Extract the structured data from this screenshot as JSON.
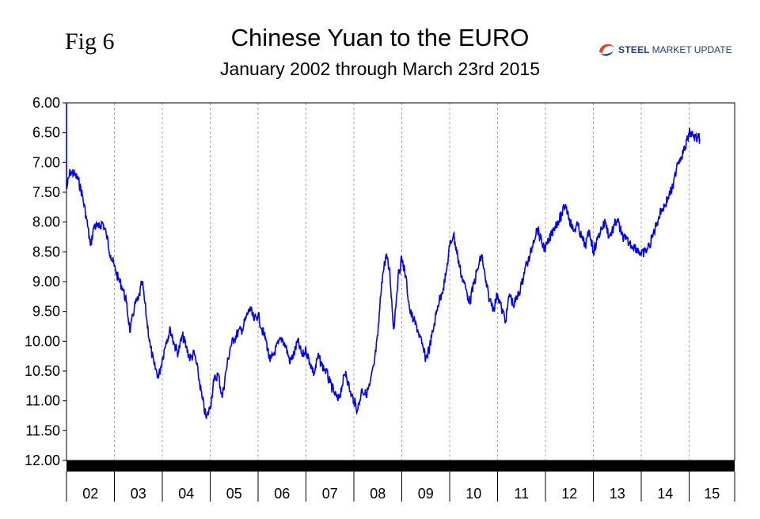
{
  "header": {
    "fig_label": "Fig 6",
    "title": "Chinese Yuan to the EURO",
    "subtitle": "January 2002 through March 23rd 2015",
    "brand_word1": "STEEL",
    "brand_word2": "MARKET UPDATE"
  },
  "colors": {
    "line": "#0000ff",
    "grid": "#a6a6a6",
    "axis": "#000000",
    "bottom_band": "#000000",
    "brand_blue": "#1f3e7a",
    "brand_swirl": "#e2452b"
  },
  "chart_data": {
    "type": "line",
    "title": "Chinese Yuan to the EURO",
    "subtitle": "January 2002 through March 23rd 2015",
    "xlabel": "",
    "ylabel": "",
    "y_inverted": true,
    "ylim": [
      6.0,
      12.0
    ],
    "xlim": [
      2002.0,
      2015.95
    ],
    "yticks": [
      "6.00",
      "6.50",
      "7.00",
      "7.50",
      "8.00",
      "8.50",
      "9.00",
      "9.50",
      "10.00",
      "10.50",
      "11.00",
      "11.50",
      "12.00"
    ],
    "xticks": [
      "02",
      "03",
      "04",
      "05",
      "06",
      "07",
      "08",
      "09",
      "10",
      "11",
      "12",
      "13",
      "14",
      "15"
    ],
    "grid_x": true,
    "grid_y": false,
    "legend": "none",
    "series": [
      {
        "x": [
          2002.0,
          2002.08,
          2002.17,
          2002.25,
          2002.33,
          2002.42,
          2002.5,
          2002.58,
          2002.67,
          2002.75,
          2002.83,
          2002.92,
          2003.0,
          2003.08,
          2003.17,
          2003.25,
          2003.33,
          2003.42,
          2003.5,
          2003.58,
          2003.67,
          2003.75,
          2003.83,
          2003.92,
          2004.0,
          2004.08,
          2004.17,
          2004.25,
          2004.33,
          2004.42,
          2004.5,
          2004.58,
          2004.67,
          2004.75,
          2004.83,
          2004.92,
          2005.0,
          2005.08,
          2005.17,
          2005.25,
          2005.33,
          2005.42,
          2005.5,
          2005.58,
          2005.67,
          2005.75,
          2005.83,
          2005.92,
          2006.0,
          2006.08,
          2006.17,
          2006.25,
          2006.33,
          2006.42,
          2006.5,
          2006.58,
          2006.67,
          2006.75,
          2006.83,
          2006.92,
          2007.0,
          2007.08,
          2007.17,
          2007.25,
          2007.33,
          2007.42,
          2007.5,
          2007.58,
          2007.67,
          2007.75,
          2007.83,
          2007.92,
          2008.0,
          2008.08,
          2008.17,
          2008.25,
          2008.33,
          2008.42,
          2008.5,
          2008.58,
          2008.67,
          2008.75,
          2008.83,
          2008.92,
          2009.0,
          2009.08,
          2009.17,
          2009.25,
          2009.33,
          2009.42,
          2009.5,
          2009.58,
          2009.67,
          2009.75,
          2009.83,
          2009.92,
          2010.0,
          2010.08,
          2010.17,
          2010.25,
          2010.33,
          2010.42,
          2010.5,
          2010.58,
          2010.67,
          2010.75,
          2010.83,
          2010.92,
          2011.0,
          2011.08,
          2011.17,
          2011.25,
          2011.33,
          2011.42,
          2011.5,
          2011.58,
          2011.67,
          2011.75,
          2011.83,
          2011.92,
          2012.0,
          2012.08,
          2012.17,
          2012.25,
          2012.33,
          2012.42,
          2012.5,
          2012.58,
          2012.67,
          2012.75,
          2012.83,
          2012.92,
          2013.0,
          2013.08,
          2013.17,
          2013.25,
          2013.33,
          2013.42,
          2013.5,
          2013.58,
          2013.67,
          2013.75,
          2013.83,
          2013.92,
          2014.0,
          2014.08,
          2014.17,
          2014.25,
          2014.33,
          2014.42,
          2014.5,
          2014.58,
          2014.67,
          2014.75,
          2014.83,
          2014.92,
          2015.0,
          2015.08,
          2015.17,
          2015.22
        ],
        "y": [
          7.45,
          7.15,
          7.2,
          7.3,
          7.55,
          7.95,
          8.4,
          8.05,
          8.1,
          8.0,
          8.2,
          8.55,
          8.75,
          8.95,
          9.1,
          9.35,
          9.85,
          9.4,
          9.3,
          9.0,
          9.6,
          10.1,
          10.4,
          10.6,
          10.3,
          10.0,
          9.8,
          10.05,
          10.2,
          9.9,
          10.1,
          10.3,
          10.2,
          10.55,
          10.95,
          11.3,
          11.1,
          10.65,
          10.55,
          10.95,
          10.5,
          10.1,
          9.95,
          9.85,
          9.8,
          9.6,
          9.45,
          9.65,
          9.55,
          9.8,
          10.0,
          10.35,
          10.2,
          10.05,
          9.95,
          10.1,
          10.35,
          10.2,
          10.0,
          10.25,
          10.15,
          10.35,
          10.55,
          10.25,
          10.4,
          10.5,
          10.7,
          10.85,
          11.0,
          10.75,
          10.5,
          10.85,
          11.0,
          11.15,
          10.8,
          10.9,
          10.75,
          10.4,
          9.9,
          9.0,
          8.55,
          8.85,
          9.8,
          8.95,
          8.6,
          8.9,
          9.5,
          9.65,
          9.8,
          10.05,
          10.3,
          10.1,
          9.75,
          9.4,
          9.2,
          8.9,
          8.4,
          8.2,
          8.6,
          8.9,
          9.1,
          9.35,
          9.05,
          8.8,
          8.55,
          9.0,
          9.3,
          9.45,
          9.2,
          9.45,
          9.65,
          9.2,
          9.4,
          9.25,
          9.05,
          8.75,
          8.6,
          8.3,
          8.1,
          8.35,
          8.45,
          8.3,
          8.1,
          8.0,
          7.9,
          7.7,
          7.95,
          8.15,
          8.05,
          8.25,
          8.4,
          8.15,
          8.5,
          8.3,
          8.1,
          8.0,
          8.25,
          8.1,
          7.95,
          8.2,
          8.3,
          8.35,
          8.4,
          8.45,
          8.55,
          8.5,
          8.4,
          8.2,
          8.0,
          7.8,
          7.7,
          7.55,
          7.4,
          7.0,
          6.9,
          6.75,
          6.5,
          6.55,
          6.6,
          6.6
        ]
      }
    ]
  }
}
